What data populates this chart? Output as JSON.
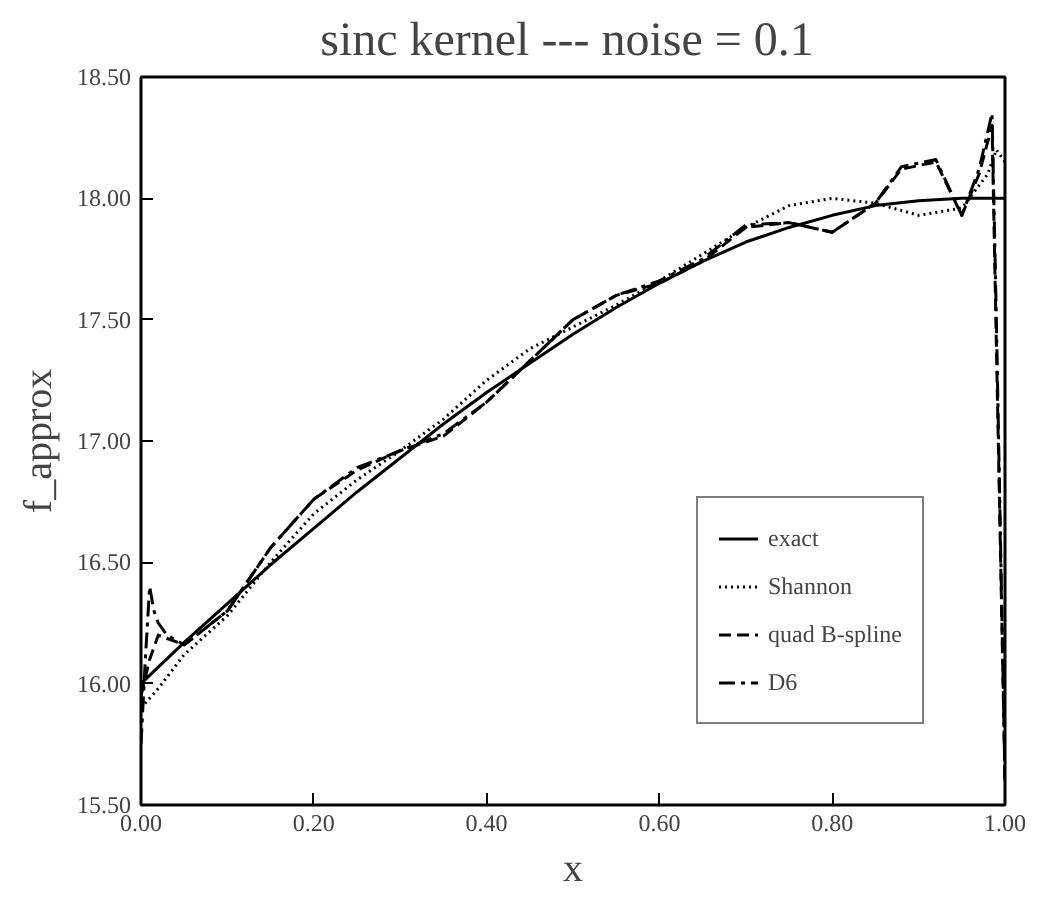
{
  "chart_data": {
    "type": "line",
    "title": "sinc kernel  --- noise = 0.1",
    "xlabel": "x",
    "ylabel": "f_approx",
    "xlim": [
      0,
      1
    ],
    "ylim": [
      15.5,
      18.5
    ],
    "xticks": [
      {
        "value": 0,
        "label": "0.00"
      },
      {
        "value": 0.2,
        "label": "0.20"
      },
      {
        "value": 0.4,
        "label": "0.40"
      },
      {
        "value": 0.6,
        "label": "0.60"
      },
      {
        "value": 0.8,
        "label": "0.80"
      },
      {
        "value": 1,
        "label": "1.00"
      }
    ],
    "yticks": [
      {
        "value": 15.5,
        "label": "15.50"
      },
      {
        "value": 16,
        "label": "16.00"
      },
      {
        "value": 16.5,
        "label": "16.50"
      },
      {
        "value": 17,
        "label": "17.00"
      },
      {
        "value": 17.5,
        "label": "17.50"
      },
      {
        "value": 18,
        "label": "18.00"
      },
      {
        "value": 18.5,
        "label": "18.50"
      }
    ],
    "grid": false,
    "legend": "bottom right",
    "marker": "none",
    "series": [
      {
        "name": "exact",
        "color": "#000000",
        "line_style": "solid",
        "x": [
          0,
          0.05,
          0.1,
          0.15,
          0.2,
          0.25,
          0.3,
          0.35,
          0.4,
          0.45,
          0.5,
          0.55,
          0.6,
          0.65,
          0.7,
          0.75,
          0.8,
          0.85,
          0.9,
          0.95,
          1.0
        ],
        "values": [
          16.0,
          16.17,
          16.33,
          16.49,
          16.64,
          16.79,
          16.93,
          17.07,
          17.2,
          17.32,
          17.44,
          17.55,
          17.65,
          17.74,
          17.82,
          17.88,
          17.93,
          17.97,
          17.99,
          18.0,
          18.0
        ]
      },
      {
        "name": "Shannon",
        "color": "#000000",
        "line_style": "dotted",
        "x": [
          0,
          0.02,
          0.05,
          0.1,
          0.15,
          0.2,
          0.25,
          0.3,
          0.35,
          0.4,
          0.45,
          0.5,
          0.55,
          0.6,
          0.65,
          0.7,
          0.75,
          0.8,
          0.85,
          0.9,
          0.95,
          0.98,
          0.99,
          1.0
        ],
        "values": [
          15.9,
          15.98,
          16.12,
          16.28,
          16.5,
          16.7,
          16.84,
          16.96,
          17.09,
          17.25,
          17.38,
          17.47,
          17.56,
          17.66,
          17.77,
          17.88,
          17.97,
          18.0,
          17.98,
          17.93,
          17.96,
          18.1,
          18.2,
          18.15
        ]
      },
      {
        "name": "quad B-spline",
        "color": "#000000",
        "line_style": "dashed",
        "x": [
          0,
          0.01,
          0.02,
          0.05,
          0.1,
          0.15,
          0.2,
          0.25,
          0.3,
          0.35,
          0.4,
          0.45,
          0.5,
          0.55,
          0.6,
          0.65,
          0.7,
          0.75,
          0.8,
          0.85,
          0.88,
          0.92,
          0.95,
          0.97,
          0.985,
          0.99,
          1.0
        ],
        "values": [
          15.95,
          16.1,
          16.2,
          16.16,
          16.3,
          16.56,
          16.76,
          16.88,
          16.96,
          17.02,
          17.16,
          17.33,
          17.5,
          17.6,
          17.65,
          17.74,
          17.88,
          17.9,
          17.86,
          17.98,
          18.12,
          18.15,
          17.93,
          18.1,
          18.3,
          17.4,
          15.6
        ]
      },
      {
        "name": "D6",
        "color": "#000000",
        "line_style": "dashdot",
        "x": [
          0,
          0.005,
          0.01,
          0.015,
          0.02,
          0.03,
          0.05,
          0.1,
          0.15,
          0.2,
          0.25,
          0.3,
          0.35,
          0.4,
          0.45,
          0.5,
          0.55,
          0.6,
          0.65,
          0.7,
          0.75,
          0.8,
          0.85,
          0.88,
          0.92,
          0.95,
          0.97,
          0.985,
          0.99,
          1.0
        ],
        "values": [
          15.75,
          16.1,
          16.4,
          16.3,
          16.25,
          16.2,
          16.16,
          16.3,
          16.56,
          16.76,
          16.89,
          16.96,
          17.03,
          17.16,
          17.33,
          17.5,
          17.6,
          17.66,
          17.75,
          17.89,
          17.9,
          17.86,
          17.98,
          18.13,
          18.16,
          17.93,
          18.12,
          18.35,
          17.5,
          15.6
        ]
      }
    ]
  }
}
